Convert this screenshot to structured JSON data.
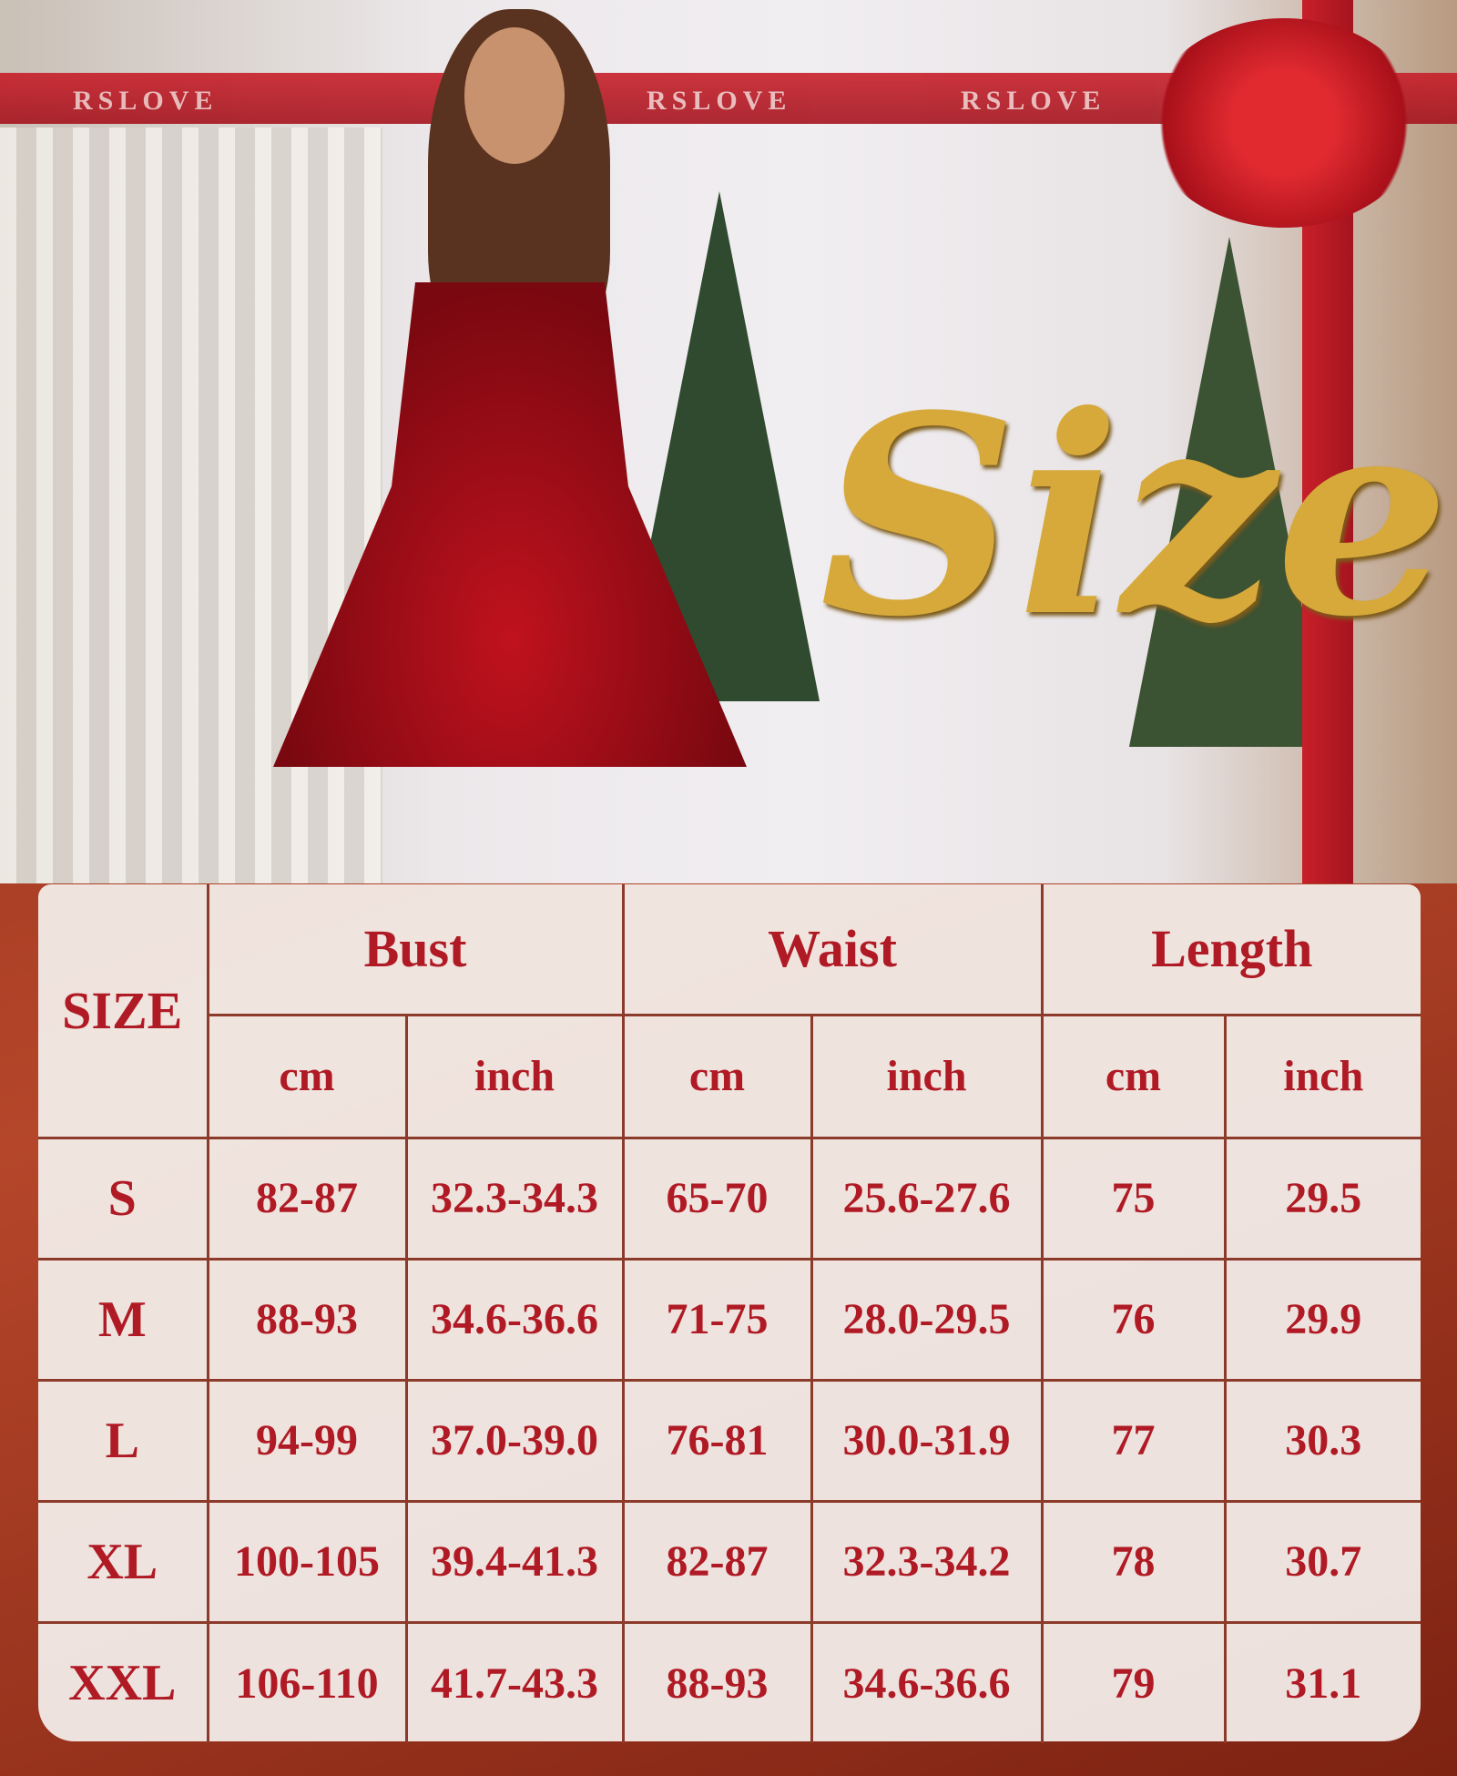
{
  "banner": {
    "brand": "RSLOVE",
    "title": "Size"
  },
  "colors": {
    "text": "#b01a24",
    "grid": "#8c3a2a",
    "gold": "#d6a93a"
  },
  "table": {
    "size_header": "SIZE",
    "groups": [
      "Bust",
      "Waist",
      "Length"
    ],
    "units": [
      "cm",
      "inch",
      "cm",
      "inch",
      "cm",
      "inch"
    ],
    "rows": [
      [
        "S",
        "82-87",
        "32.3-34.3",
        "65-70",
        "25.6-27.6",
        "75",
        "29.5"
      ],
      [
        "M",
        "88-93",
        "34.6-36.6",
        "71-75",
        "28.0-29.5",
        "76",
        "29.9"
      ],
      [
        "L",
        "94-99",
        "37.0-39.0",
        "76-81",
        "30.0-31.9",
        "77",
        "30.3"
      ],
      [
        "XL",
        "100-105",
        "39.4-41.3",
        "82-87",
        "32.3-34.2",
        "78",
        "30.7"
      ],
      [
        "XXL",
        "106-110",
        "41.7-43.3",
        "88-93",
        "34.6-36.6",
        "79",
        "31.1"
      ]
    ]
  }
}
